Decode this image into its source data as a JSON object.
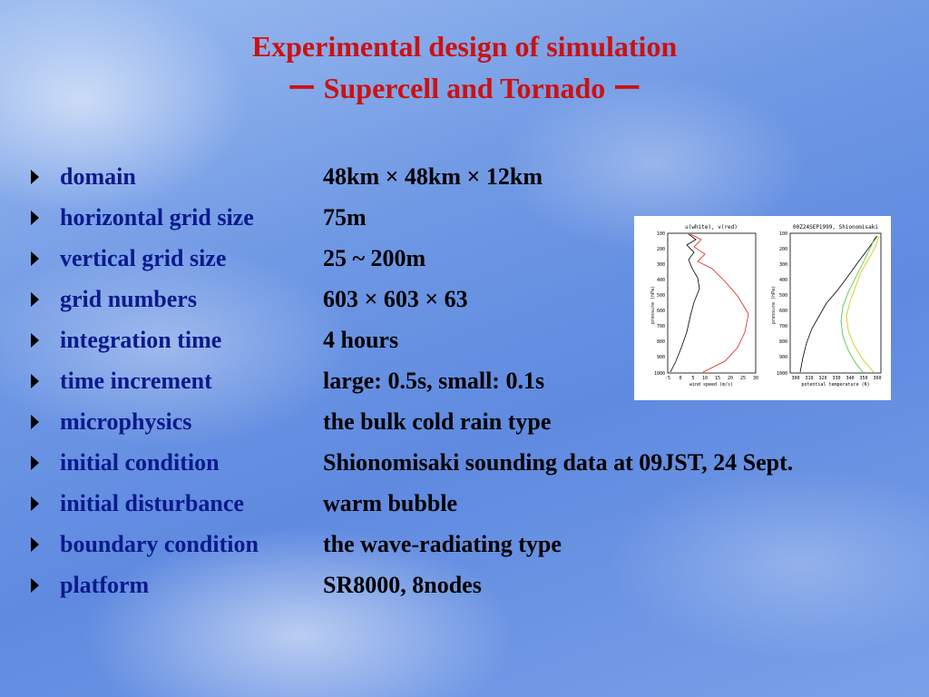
{
  "title": {
    "line1": "Experimental design of simulation",
    "line2": "ー Supercell and Tornado ー"
  },
  "items": [
    {
      "label": "domain",
      "value": "48km × 48km × 12km"
    },
    {
      "label": "horizontal grid size",
      "value": "75m"
    },
    {
      "label": "vertical grid size",
      "value": "25 ~ 200m"
    },
    {
      "label": "grid numbers",
      "value": "603 × 603 × 63"
    },
    {
      "label": "integration time",
      "value": "4 hours"
    },
    {
      "label": "time increment",
      "value": "large: 0.5s, small: 0.1s"
    },
    {
      "label": "microphysics",
      "value": "the bulk cold rain type"
    },
    {
      "label": "initial condition",
      "value": "Shionomisaki sounding data at 09JST, 24 Sept."
    },
    {
      "label": "initial disturbance",
      "value": "warm bubble"
    },
    {
      "label": "boundary condition",
      "value": "the wave-radiating type"
    },
    {
      "label": "platform",
      "value": "SR8000, 8nodes"
    }
  ],
  "figure": {
    "left_plot": {
      "title": "u(white), v(red)",
      "xlabel": "wind speed (m/s)",
      "ylabel": "pressure (hPa)",
      "xticks": [
        "-5",
        "0",
        "5",
        "10",
        "15",
        "20",
        "25",
        "30"
      ],
      "yticks": [
        "100",
        "200",
        "300",
        "400",
        "500",
        "600",
        "700",
        "800",
        "900",
        "1000"
      ],
      "series_colors": {
        "u": "#000000",
        "v": "#e02020"
      }
    },
    "right_plot": {
      "title": "00Z24SEP1999, Shionomisaki",
      "xlabel": "potential temperature (K)",
      "ylabel": "pressure (hPa)",
      "xticks": [
        "300",
        "310",
        "320",
        "330",
        "340",
        "350",
        "360"
      ],
      "yticks": [
        "100",
        "200",
        "300",
        "400",
        "500",
        "600",
        "700",
        "800",
        "900",
        "1000"
      ],
      "series_colors": {
        "theta": "#000000",
        "theta_e": "#c8c800",
        "theta_es": "#40c040"
      }
    }
  }
}
